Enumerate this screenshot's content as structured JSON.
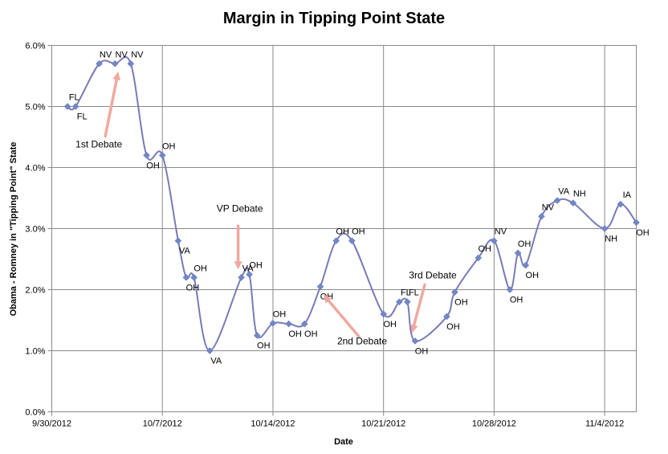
{
  "chart_data": {
    "type": "line",
    "title": "Margin in Tipping Point State",
    "xlabel": "Date",
    "ylabel": "Obama - Romney in \"Tipping Point\" State",
    "xlim": [
      "9/30/2012",
      "11/6/2012"
    ],
    "ylim": [
      0,
      6
    ],
    "x_ticks": [
      "9/30/2012",
      "10/7/2012",
      "10/14/2012",
      "10/21/2012",
      "10/28/2012",
      "11/4/2012"
    ],
    "y_ticks": [
      "0.0%",
      "1.0%",
      "2.0%",
      "3.0%",
      "4.0%",
      "5.0%",
      "6.0%"
    ],
    "grid": true,
    "line_color": "#7a7ab8",
    "marker_color": "#7088c8",
    "arrow_color": "#f0a8a0",
    "series": [
      {
        "points": [
          {
            "x": "10/1/2012",
            "y": 5.0,
            "label": "FL"
          },
          {
            "x": "10/1/2012",
            "y": 5.0,
            "label": "FL"
          },
          {
            "x": "10/3/2012",
            "y": 5.7,
            "label": "NV"
          },
          {
            "x": "10/4/2012",
            "y": 5.7,
            "label": "NV"
          },
          {
            "x": "10/5/2012",
            "y": 5.7,
            "label": "NV"
          },
          {
            "x": "10/6/2012",
            "y": 4.2,
            "label": "OH"
          },
          {
            "x": "10/7/2012",
            "y": 4.2,
            "label": "OH"
          },
          {
            "x": "10/8/2012",
            "y": 2.8,
            "label": "VA"
          },
          {
            "x": "10/8/2012",
            "y": 2.2,
            "label": "OH"
          },
          {
            "x": "10/9/2012",
            "y": 2.2,
            "label": "OH"
          },
          {
            "x": "10/10/2012",
            "y": 1.0,
            "label": "VA"
          },
          {
            "x": "10/12/2012",
            "y": 2.2,
            "label": "VA"
          },
          {
            "x": "10/12/2012",
            "y": 2.25,
            "label": "OH"
          },
          {
            "x": "10/13/2012",
            "y": 1.25,
            "label": "OH"
          },
          {
            "x": "10/14/2012",
            "y": 1.45,
            "label": "OH"
          },
          {
            "x": "10/15/2012",
            "y": 1.44,
            "label": "OH"
          },
          {
            "x": "10/16/2012",
            "y": 1.44,
            "label": "OH"
          },
          {
            "x": "10/17/2012",
            "y": 2.05,
            "label": "OH"
          },
          {
            "x": "10/18/2012",
            "y": 2.8,
            "label": "OH"
          },
          {
            "x": "10/19/2012",
            "y": 2.8,
            "label": "OH"
          },
          {
            "x": "10/21/2012",
            "y": 1.6,
            "label": "OH"
          },
          {
            "x": "10/22/2012",
            "y": 1.8,
            "label": "FL"
          },
          {
            "x": "10/22/2012",
            "y": 1.8,
            "label": "FL"
          },
          {
            "x": "10/23/2012",
            "y": 1.16,
            "label": "OH"
          },
          {
            "x": "10/25/2012",
            "y": 1.56,
            "label": "OH"
          },
          {
            "x": "10/25/2012",
            "y": 1.96,
            "label": "OH"
          },
          {
            "x": "10/27/2012",
            "y": 2.52,
            "label": "OH"
          },
          {
            "x": "10/28/2012",
            "y": 2.8,
            "label": "NV"
          },
          {
            "x": "10/29/2012",
            "y": 2.0,
            "label": "OH"
          },
          {
            "x": "10/29/2012",
            "y": 2.6,
            "label": "OH"
          },
          {
            "x": "10/30/2012",
            "y": 2.4,
            "label": "OH"
          },
          {
            "x": "10/31/2012",
            "y": 3.2,
            "label": "NV"
          },
          {
            "x": "11/1/2012",
            "y": 3.46,
            "label": "VA"
          },
          {
            "x": "11/2/2012",
            "y": 3.42,
            "label": "NH"
          },
          {
            "x": "11/4/2012",
            "y": 3.0,
            "label": "NH"
          },
          {
            "x": "11/5/2012",
            "y": 3.4,
            "label": "IA"
          },
          {
            "x": "11/6/2012",
            "y": 3.1,
            "label": "OH"
          }
        ]
      }
    ],
    "annotations": [
      {
        "text": "1st Debate"
      },
      {
        "text": "VP Debate"
      },
      {
        "text": "2nd Debate"
      },
      {
        "text": "3rd Debate"
      }
    ]
  }
}
